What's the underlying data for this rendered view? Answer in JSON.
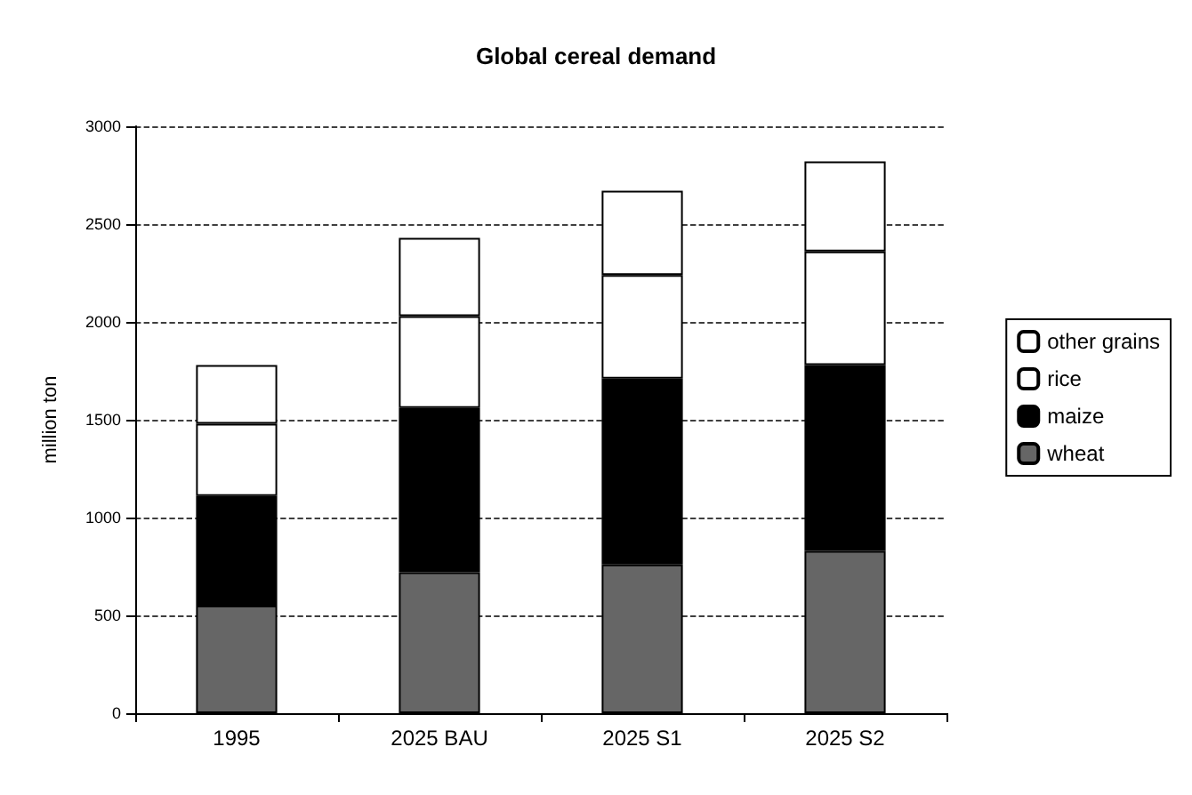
{
  "chart_data": {
    "type": "bar",
    "title": "Global cereal demand",
    "ylabel": "million ton",
    "categories": [
      "1995",
      "2025 BAU",
      "2025 S1",
      "2025 S2"
    ],
    "stacked": true,
    "series": [
      {
        "name": "wheat",
        "color": "#666666",
        "values": [
          550,
          720,
          760,
          830
        ]
      },
      {
        "name": "maize",
        "color": "#000000",
        "values": [
          560,
          840,
          950,
          950
        ]
      },
      {
        "name": "rice",
        "color": "#ffffff",
        "values": [
          370,
          470,
          530,
          580
        ]
      },
      {
        "name": "other grains",
        "color": "#ffffff",
        "values": [
          300,
          400,
          430,
          460
        ]
      }
    ],
    "ylim": [
      0,
      3000
    ],
    "yticks": [
      0,
      500,
      1000,
      1500,
      2000,
      2500,
      3000
    ],
    "grid": "y",
    "legend": "right"
  }
}
